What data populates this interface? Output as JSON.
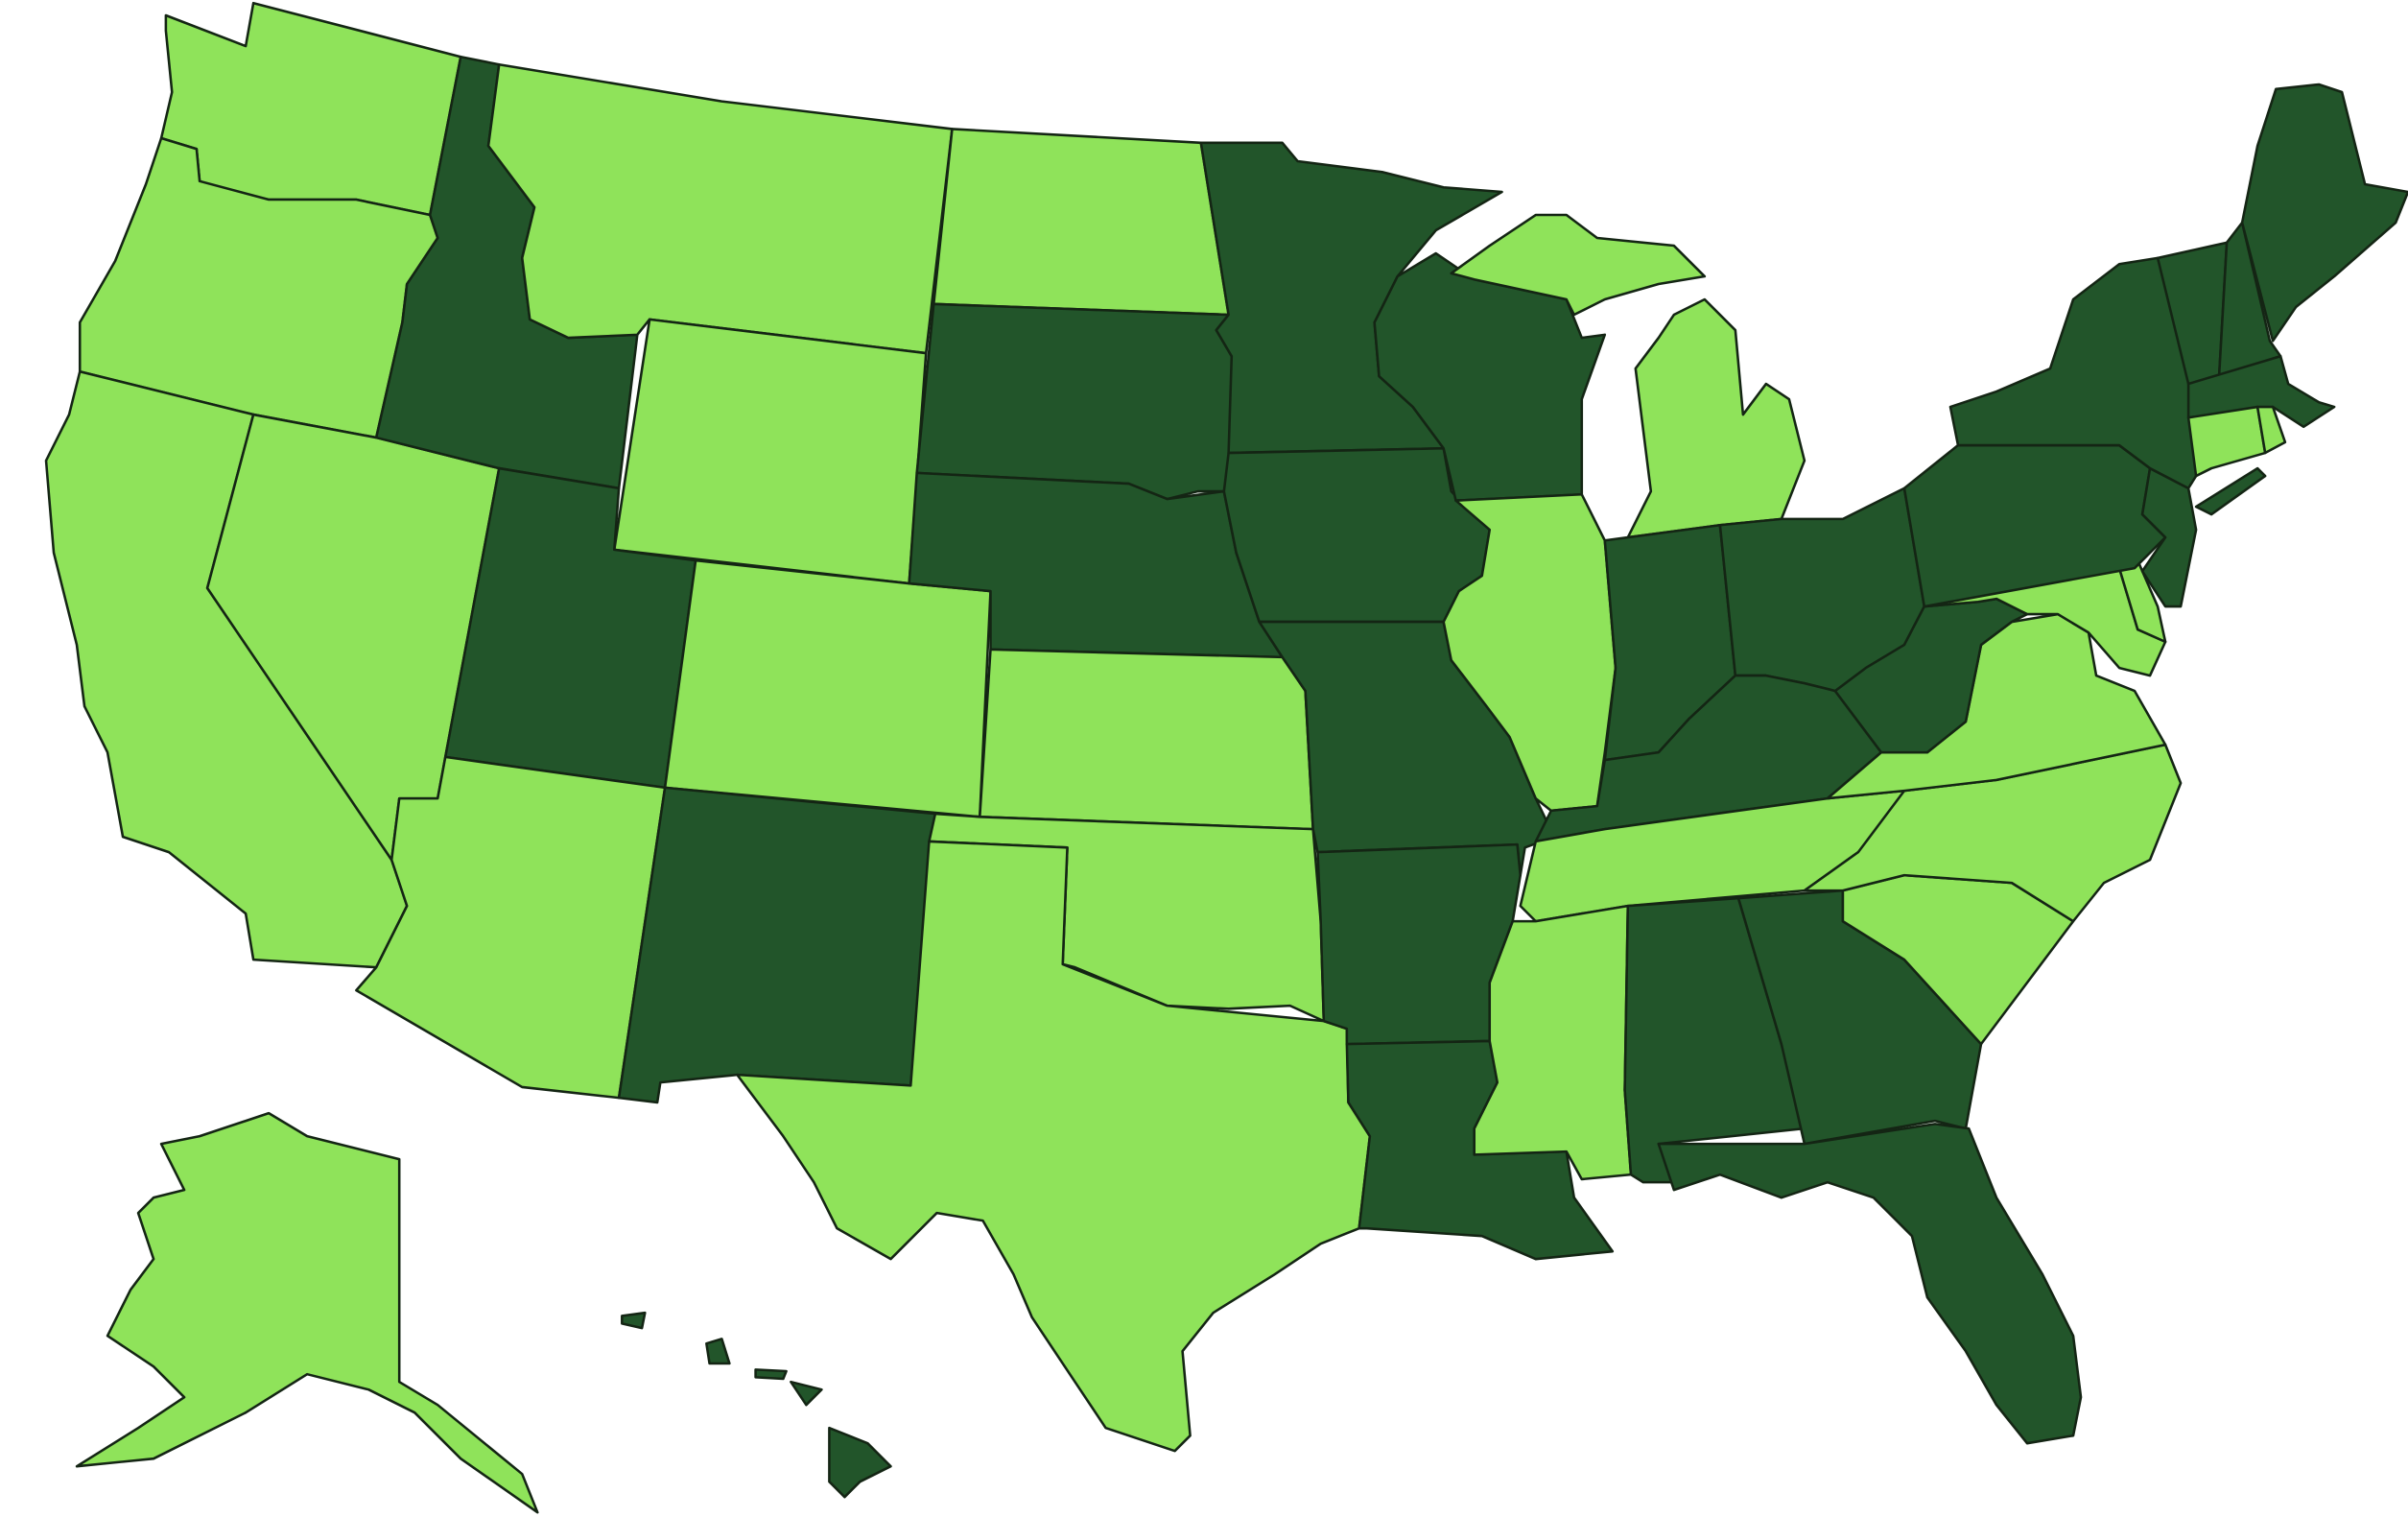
{
  "map": {
    "type": "choropleth",
    "region_set": "US states",
    "colors": {
      "dark": "#22552a",
      "light": "#8fe35a",
      "border": "#142514",
      "background": "#ffffff"
    },
    "legend": null,
    "dark_states": [
      "ID",
      "UT",
      "NM",
      "SD",
      "NE",
      "MN",
      "IA",
      "MO",
      "AR",
      "LA",
      "WI",
      "IN",
      "OH",
      "KY",
      "WV",
      "PA",
      "NY",
      "NJ",
      "VT",
      "NH",
      "ME",
      "MA",
      "AL",
      "GA",
      "FL",
      "HI"
    ],
    "light_states": [
      "WA",
      "OR",
      "CA",
      "NV",
      "AZ",
      "MT",
      "WY",
      "CO",
      "ND",
      "KS",
      "OK",
      "TX",
      "IL",
      "MI",
      "TN",
      "MS",
      "SC",
      "NC",
      "VA",
      "MD",
      "DE",
      "CT",
      "RI",
      "AK"
    ]
  }
}
